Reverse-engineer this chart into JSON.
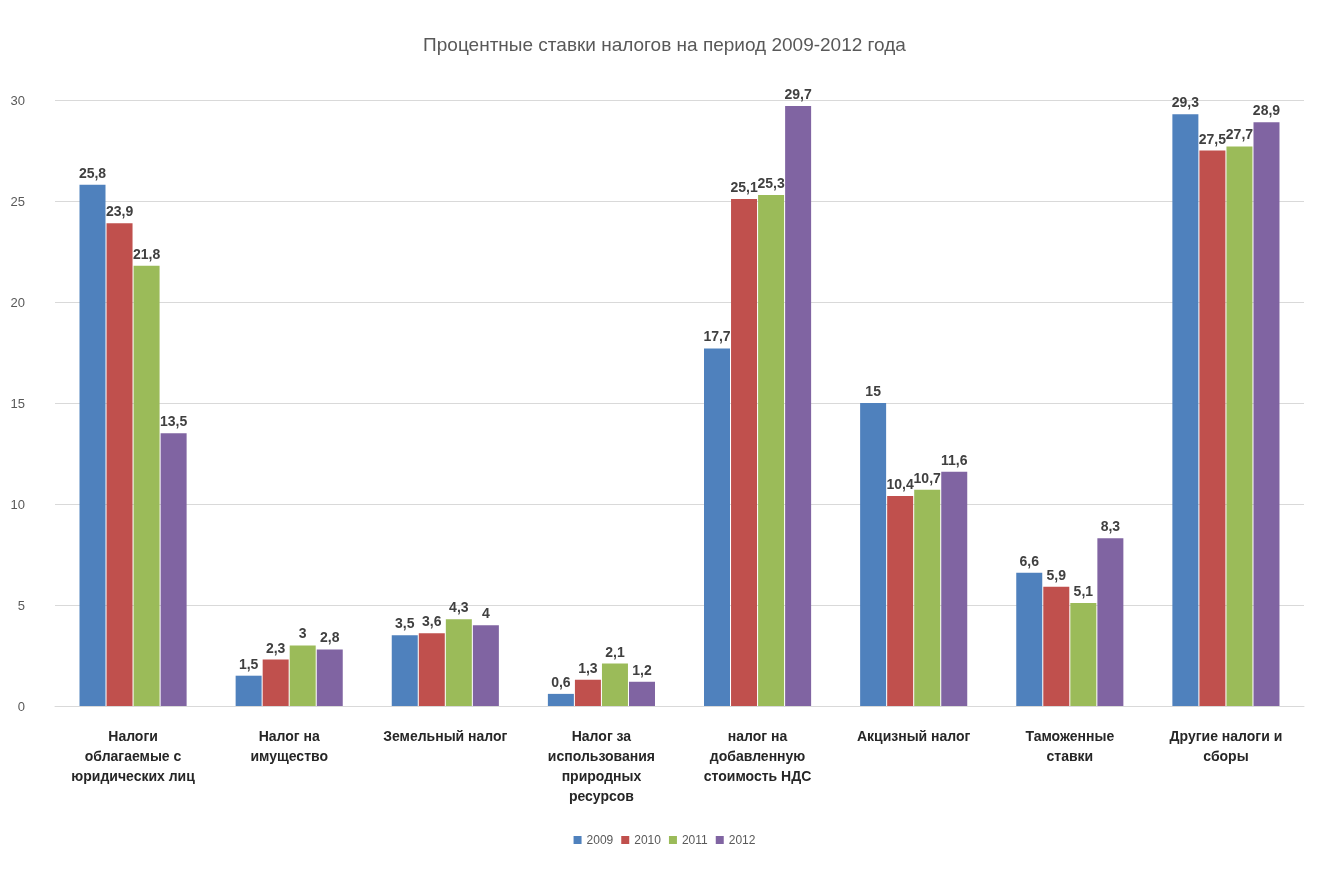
{
  "chart_data": {
    "type": "bar",
    "title": "Процентные ставки налогов на период 2009-2012 года",
    "categories": [
      "Налоги облагаемые с юридических лиц",
      "Налог на имущество",
      "Земельный налог",
      "Налог за использования природных ресурсов",
      "налог на добавленную стоимость НДС",
      "Акцизный налог",
      "Таможенные ставки",
      "Другие налоги и сборы"
    ],
    "series": [
      {
        "name": "2009",
        "color": "#4f81bd",
        "values": [
          25.8,
          1.5,
          3.5,
          0.6,
          17.7,
          15,
          6.6,
          29.3
        ],
        "value_labels": [
          "25,8",
          "1,5",
          "3,5",
          "0,6",
          "17,7",
          "15",
          "6,6",
          "29,3"
        ]
      },
      {
        "name": "2010",
        "color": "#c0504d",
        "values": [
          23.9,
          2.3,
          3.6,
          1.3,
          25.1,
          10.4,
          5.9,
          27.5
        ],
        "value_labels": [
          "23,9",
          "2,3",
          "3,6",
          "1,3",
          "25,1",
          "10,4",
          "5,9",
          "27,5"
        ]
      },
      {
        "name": "2011",
        "color": "#9bbb59",
        "values": [
          21.8,
          3,
          4.3,
          2.1,
          25.3,
          10.7,
          5.1,
          27.7
        ],
        "value_labels": [
          "21,8",
          "3",
          "4,3",
          "2,1",
          "25,3",
          "10,7",
          "5,1",
          "27,7"
        ]
      },
      {
        "name": "2012",
        "color": "#8064a2",
        "values": [
          13.5,
          2.8,
          4,
          1.2,
          29.7,
          11.6,
          8.3,
          28.9
        ],
        "value_labels": [
          "13,5",
          "2,8",
          "4",
          "1,2",
          "29,7",
          "11,6",
          "8,3",
          "28,9"
        ]
      }
    ],
    "ylim": [
      0,
      30
    ],
    "yticks": [
      0,
      5,
      10,
      15,
      20,
      25,
      30
    ],
    "grid": "y",
    "legend": "bottom"
  }
}
